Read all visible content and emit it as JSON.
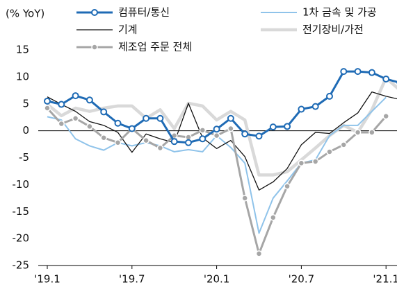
{
  "chart_data": {
    "type": "line",
    "y_unit_label": "(% YoY)",
    "categories": [
      "'19.1",
      null,
      null,
      null,
      null,
      null,
      "'19.7",
      null,
      null,
      null,
      null,
      null,
      "'20.1",
      null,
      null,
      null,
      null,
      null,
      "'20.7",
      null,
      null,
      null,
      null,
      null,
      "'21.1",
      null
    ],
    "ylim": [
      -25,
      15
    ],
    "yticks": [
      -25,
      -20,
      -15,
      -10,
      -5,
      0,
      5,
      10,
      15
    ],
    "grid": false,
    "legend": "top",
    "series": [
      {
        "name": "컴퓨터/통신",
        "color": "#1f6bb5",
        "marker": true,
        "values": [
          5.5,
          4.9,
          6.5,
          5.7,
          3.5,
          1.4,
          0.4,
          2.3,
          2.3,
          -2.0,
          -2.2,
          -1.5,
          0.3,
          2.3,
          -0.6,
          -1.0,
          0.7,
          0.8,
          4.0,
          4.5,
          6.4,
          11.0,
          11.0,
          10.8,
          9.6,
          8.9
        ]
      },
      {
        "name": "1차 금속 및 가공",
        "color": "#8fc3ea",
        "marker": false,
        "values": [
          2.6,
          2.0,
          -1.5,
          -2.8,
          -3.6,
          -2.2,
          -2.8,
          -2.2,
          -2.8,
          -3.9,
          -3.5,
          -3.9,
          -0.9,
          -3.1,
          -6.0,
          -19.0,
          -12.5,
          -9.3,
          -6.0,
          -5.4,
          -0.9,
          1.0,
          1.0,
          3.6,
          6.2,
          null
        ]
      },
      {
        "name": "기계",
        "color": "#111111",
        "marker": false,
        "values": [
          6.3,
          4.9,
          3.6,
          1.7,
          1.0,
          -0.3,
          -4.0,
          -0.6,
          -1.5,
          -2.2,
          5.1,
          -1.3,
          -3.3,
          -1.8,
          -4.8,
          -11.0,
          -9.5,
          -7.0,
          -2.6,
          -0.3,
          -0.5,
          1.5,
          3.3,
          7.2,
          6.4,
          5.8
        ]
      },
      {
        "name": "전기장비/가전",
        "color": "#d9d9d9",
        "marker": false,
        "values": [
          4.9,
          2.8,
          4.2,
          3.6,
          4.2,
          4.6,
          4.6,
          2.3,
          3.9,
          0.4,
          5.1,
          4.6,
          2.0,
          3.6,
          2.0,
          -8.2,
          -8.2,
          -7.6,
          -5.4,
          -3.2,
          -0.9,
          1.0,
          -0.3,
          3.9,
          9.8,
          7.5
        ]
      },
      {
        "name": "제조업 주문 전체",
        "color": "#a6a6a6",
        "marker": true,
        "values": [
          4.2,
          1.3,
          2.3,
          0.8,
          -1.3,
          -2.2,
          0.4,
          -1.8,
          -3.2,
          -0.9,
          -1.2,
          0.1,
          -0.9,
          0.4,
          -12.5,
          -22.8,
          -16.1,
          -10.3,
          -6.0,
          -5.7,
          -3.9,
          -2.6,
          -0.3,
          -0.3,
          2.7,
          null
        ]
      }
    ]
  }
}
